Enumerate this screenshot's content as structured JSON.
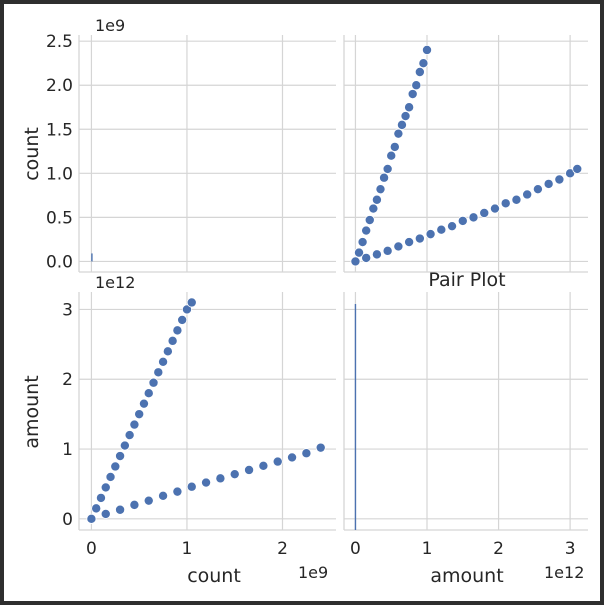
{
  "title": "Pair Plot",
  "colors": {
    "marker": "#4c72b0",
    "marker_edge": "#ffffff",
    "grid": "#d5d5d5",
    "text": "#262626"
  },
  "chart_data": {
    "type": "scatter",
    "title": "Pair Plot",
    "variables": [
      "count",
      "amount"
    ],
    "grid": true,
    "axes": {
      "count": {
        "ylim": [
          -0.12,
          2.57
        ],
        "xlim": [
          -0.12,
          2.57
        ],
        "ticks": [
          0,
          0.5,
          1,
          1.5,
          2,
          2.5
        ],
        "x_ticks": [
          0,
          1,
          2
        ],
        "tick_labels": [
          "0.0",
          "0.5",
          "1.0",
          "1.5",
          "2.0",
          "2.5"
        ],
        "x_tick_labels": [
          "0",
          "1",
          "2"
        ],
        "scale_label": "1e9"
      },
      "amount": {
        "ylim": [
          -0.16,
          3.25
        ],
        "xlim": [
          -0.16,
          3.25
        ],
        "ticks": [
          0,
          1,
          2,
          3
        ],
        "tick_labels": [
          "0",
          "1",
          "2",
          "3"
        ],
        "scale_label": "1e12"
      }
    },
    "panels": [
      {
        "row": "count",
        "col": "count",
        "kind": "hist",
        "note": ""
      },
      {
        "row": "count",
        "col": "amount",
        "kind": "scatter",
        "series": [
          {
            "x": [
              0,
              0.05,
              0.1,
              0.15,
              0.2,
              0.25,
              0.3,
              0.35,
              0.4,
              0.45,
              0.5,
              0.55,
              0.6,
              0.65,
              0.7,
              0.75,
              0.8,
              0.85,
              0.9,
              0.95,
              1.0
            ],
            "y": [
              0,
              0.1,
              0.22,
              0.35,
              0.47,
              0.6,
              0.7,
              0.82,
              0.95,
              1.05,
              1.2,
              1.3,
              1.45,
              1.55,
              1.65,
              1.75,
              1.9,
              2.0,
              2.15,
              2.25,
              2.4
            ]
          },
          {
            "x": [
              0,
              0.15,
              0.3,
              0.45,
              0.6,
              0.75,
              0.9,
              1.05,
              1.2,
              1.35,
              1.5,
              1.65,
              1.8,
              1.95,
              2.1,
              2.25,
              2.4,
              2.55,
              2.7,
              2.85,
              3.0,
              3.1
            ],
            "y": [
              0,
              0.04,
              0.08,
              0.12,
              0.17,
              0.22,
              0.26,
              0.31,
              0.36,
              0.4,
              0.46,
              0.5,
              0.55,
              0.6,
              0.66,
              0.7,
              0.76,
              0.82,
              0.88,
              0.93,
              1.0,
              1.05
            ]
          }
        ]
      },
      {
        "row": "amount",
        "col": "count",
        "kind": "scatter",
        "series": [
          {
            "x": [
              0,
              0.05,
              0.1,
              0.15,
              0.2,
              0.25,
              0.3,
              0.35,
              0.4,
              0.45,
              0.5,
              0.55,
              0.6,
              0.65,
              0.7,
              0.75,
              0.8,
              0.85,
              0.9,
              0.95,
              1.0,
              1.05
            ],
            "y": [
              0,
              0.15,
              0.3,
              0.45,
              0.6,
              0.75,
              0.9,
              1.05,
              1.2,
              1.35,
              1.5,
              1.65,
              1.8,
              1.95,
              2.1,
              2.25,
              2.4,
              2.55,
              2.7,
              2.85,
              3.0,
              3.1
            ]
          },
          {
            "x": [
              0,
              0.15,
              0.3,
              0.45,
              0.6,
              0.75,
              0.9,
              1.05,
              1.2,
              1.35,
              1.5,
              1.65,
              1.8,
              1.95,
              2.1,
              2.25,
              2.4
            ],
            "y": [
              0,
              0.07,
              0.13,
              0.2,
              0.26,
              0.33,
              0.39,
              0.46,
              0.52,
              0.58,
              0.64,
              0.7,
              0.76,
              0.82,
              0.88,
              0.94,
              1.02
            ]
          }
        ]
      },
      {
        "row": "amount",
        "col": "amount",
        "kind": "hist",
        "note": ""
      }
    ]
  }
}
